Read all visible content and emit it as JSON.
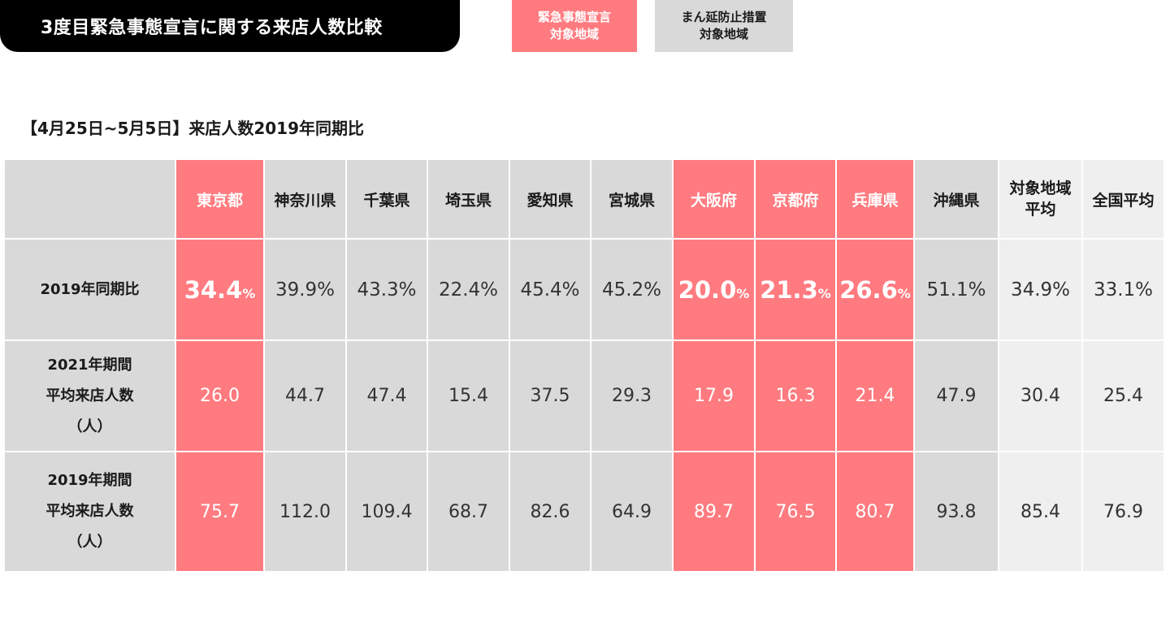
{
  "header": {
    "title": "3度目緊急事態宣言に関する来店人数比較",
    "legend": [
      {
        "line1": "緊急事態宣言",
        "line2": "対象地域",
        "color": "#ff7b80"
      },
      {
        "line1": "まん延防止措置",
        "line2": "対象地域",
        "color": "#d9d9d9"
      }
    ],
    "subtitle": "【4月25日~5月5日】来店人数2019年同期比"
  },
  "chart_data": {
    "type": "table",
    "columns": [
      {
        "name": "東京都",
        "category": "emergency"
      },
      {
        "name": "神奈川県",
        "category": "semi"
      },
      {
        "name": "千葉県",
        "category": "semi"
      },
      {
        "name": "埼玉県",
        "category": "semi"
      },
      {
        "name": "愛知県",
        "category": "semi"
      },
      {
        "name": "宮城県",
        "category": "semi"
      },
      {
        "name": "大阪府",
        "category": "emergency"
      },
      {
        "name": "京都府",
        "category": "emergency"
      },
      {
        "name": "兵庫県",
        "category": "emergency"
      },
      {
        "name": "沖縄県",
        "category": "semi"
      },
      {
        "name": "対象地域",
        "name2": "平均",
        "category": "average"
      },
      {
        "name": "全国平均",
        "category": "average"
      }
    ],
    "rows": [
      {
        "label": [
          "2019年同期比"
        ],
        "values": [
          "34.4",
          "39.9",
          "43.3",
          "22.4",
          "45.4",
          "45.2",
          "20.0",
          "21.3",
          "26.6",
          "51.1",
          "34.9",
          "33.1"
        ],
        "unit": "%"
      },
      {
        "label": [
          "2021年期間",
          "平均来店人数",
          "（人）"
        ],
        "values": [
          "26.0",
          "44.7",
          "47.4",
          "15.4",
          "37.5",
          "29.3",
          "17.9",
          "16.3",
          "21.4",
          "47.9",
          "30.4",
          "25.4"
        ]
      },
      {
        "label": [
          "2019年期間",
          "平均来店人数",
          "（人）"
        ],
        "values": [
          "75.7",
          "112.0",
          "109.4",
          "68.7",
          "82.6",
          "64.9",
          "89.7",
          "76.5",
          "80.7",
          "93.8",
          "85.4",
          "76.9"
        ]
      }
    ]
  }
}
